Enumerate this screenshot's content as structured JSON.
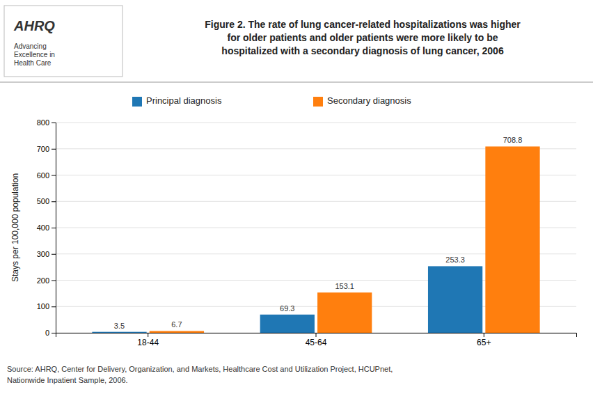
{
  "chart_data": {
    "type": "bar",
    "title": "Figure 2.  The rate of lung cancer-related hospitalizations was higher\nfor older patients and older patients were more likely to be\nhospitalized with a secondary diagnosis of lung cancer, 2006",
    "annotations": [
      "AHRQ",
      "Advancing",
      "Excellence in",
      "Health Care"
    ],
    "source": [
      "Source: AHRQ, Center for Delivery, Organization, and Markets, Healthcare Cost and Utilization Project, HCUPnet,",
      "Nationwide Inpatient Sample, 2006."
    ],
    "categories": [
      "18-44",
      "45-64",
      "65+"
    ],
    "series": [
      {
        "name": "Principal diagnosis",
        "values": [
          3.5,
          69.3,
          253.3
        ]
      },
      {
        "name": "Secondary diagnosis",
        "values": [
          6.7,
          153.1,
          708.8
        ]
      }
    ],
    "ylabel": "Stays per 100,000 population",
    "ylim": [
      0,
      800
    ],
    "yticks": [
      0,
      100,
      200,
      300,
      400,
      500,
      600,
      700,
      800
    ],
    "grid": true,
    "legend": "top",
    "data_labels": true
  }
}
